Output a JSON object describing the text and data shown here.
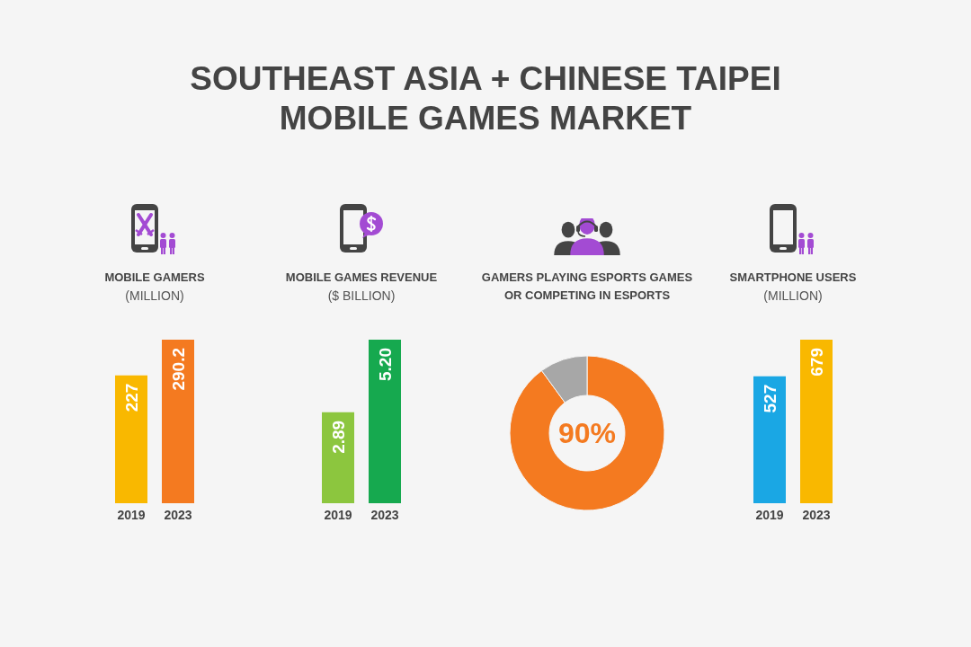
{
  "chart_data": [
    {
      "type": "other",
      "title": "SOUTHEAST ASIA + CHINESE TAIPEI MOBILE GAMES MARKET"
    },
    {
      "type": "bar",
      "title": "MOBILE GAMERS",
      "subtitle": "(MILLION)",
      "categories": [
        "2019",
        "2023"
      ],
      "values": [
        227,
        290.2
      ],
      "colors": [
        "#f9b800",
        "#f47a20"
      ],
      "data_labels": true
    },
    {
      "type": "bar",
      "title": "MOBILE GAMES REVENUE",
      "subtitle": "($ BILLION)",
      "categories": [
        "2019",
        "2023"
      ],
      "values": [
        2.89,
        5.2
      ],
      "colors": [
        "#8cc63e",
        "#16a94f"
      ],
      "value_labels": [
        "2.89",
        "5.20"
      ]
    },
    {
      "type": "donut",
      "title": "GAMERS PLAYING ESPORTS GAMES OR COMPETING IN ESPORTS",
      "categories": [
        null,
        null
      ],
      "values": [
        90,
        10
      ],
      "colors": [
        "#f47a20",
        "#a7a7a7"
      ],
      "value_labels": [
        "90%",
        null
      ]
    },
    {
      "type": "bar",
      "title": "SMARTPHONE USERS",
      "subtitle": "(MILLION)",
      "categories": [
        "2019",
        "2023"
      ],
      "values": [
        527,
        679
      ],
      "colors": [
        "#1aa7e4",
        "#f9b800"
      ],
      "data_labels": true
    }
  ]
}
